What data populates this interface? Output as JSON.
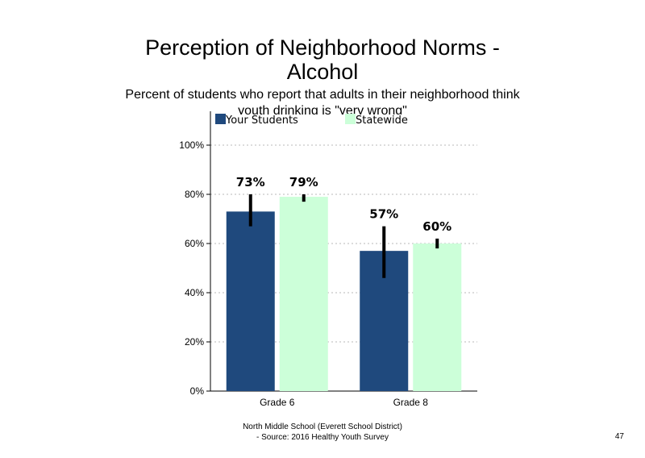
{
  "slide": {
    "title_line1": "Perception of Neighborhood Norms -",
    "title_line2": "Alcohol",
    "subtitle": "Percent of students who report that adults in their neighborhood think youth drinking is \"very wrong\"",
    "footer_line1": "North Middle School (Everett School District)",
    "footer_line2": "- Source: 2016 Healthy Youth Survey",
    "page_number": "47"
  },
  "chart_data": {
    "type": "bar",
    "categories": [
      "Grade 6",
      "Grade 8"
    ],
    "series": [
      {
        "name": "Your Students",
        "color": "#1f497d",
        "values": [
          73,
          57
        ],
        "labels": [
          "73%",
          "57%"
        ],
        "error": [
          [
            67,
            80
          ],
          [
            46,
            67
          ]
        ]
      },
      {
        "name": "Statewide",
        "color": "#ccffd9",
        "values": [
          79,
          60
        ],
        "labels": [
          "79%",
          "60%"
        ],
        "error": [
          [
            77,
            80
          ],
          [
            58,
            62
          ]
        ]
      }
    ],
    "ylim": [
      0,
      100
    ],
    "yticks": [
      0,
      20,
      40,
      60,
      80,
      100
    ],
    "ytick_labels": [
      "0%",
      "20%",
      "40%",
      "60%",
      "80%",
      "100%"
    ],
    "grid": true,
    "legend": "top",
    "error_bars": true
  }
}
